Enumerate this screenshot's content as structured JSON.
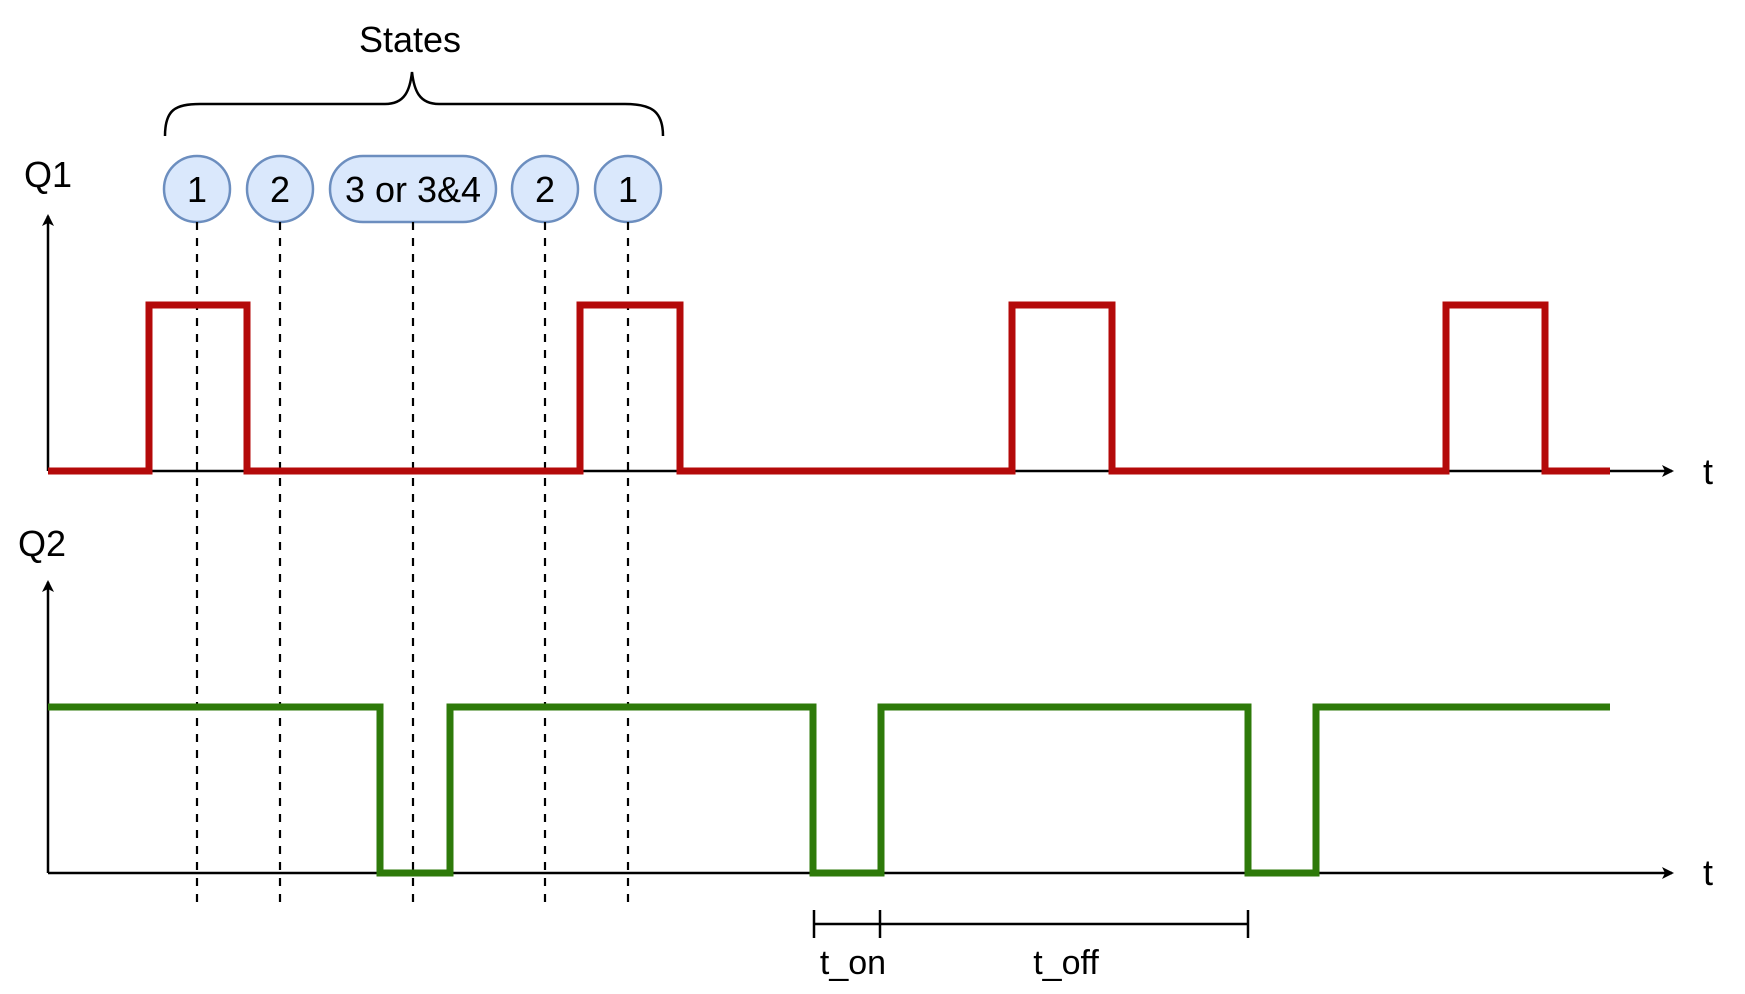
{
  "labels": {
    "q1_axis": "Q1",
    "q2_axis": "Q2",
    "t_axis_top": "t",
    "t_axis_bottom": "t",
    "states_title": "States",
    "t_on": "t_on",
    "t_off": "t_off"
  },
  "states": [
    {
      "label": "1"
    },
    {
      "label": "2"
    },
    {
      "label": "3 or 3&4"
    },
    {
      "label": "2"
    },
    {
      "label": "1"
    }
  ],
  "colors": {
    "q1_wave": "#b40a0a",
    "q2_wave": "#2e7a0a",
    "state_fill": "#dae8fc",
    "state_stroke": "#6c8ebf",
    "axis": "#000000"
  }
}
